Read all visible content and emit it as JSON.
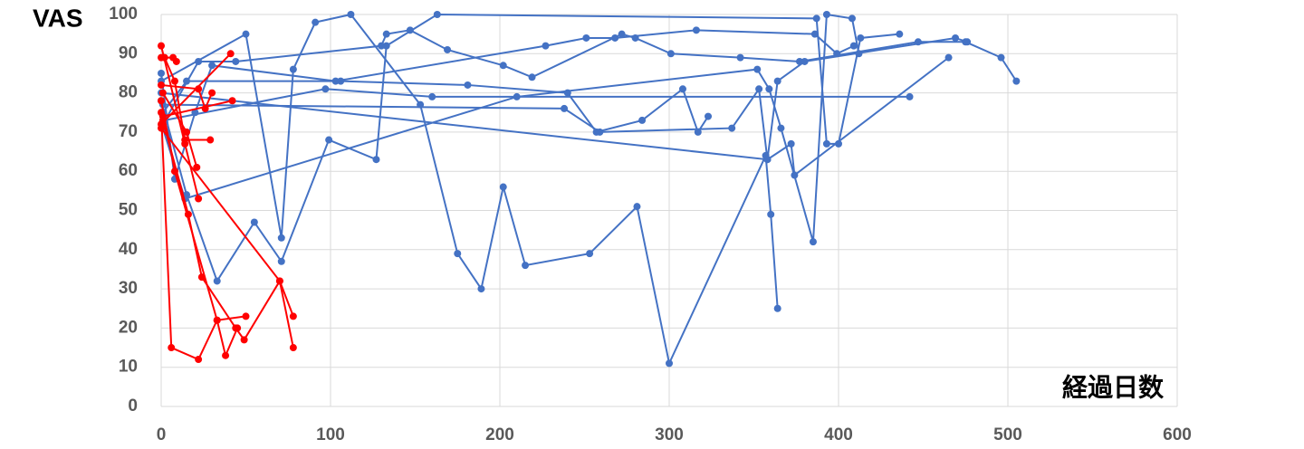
{
  "chart_data": {
    "type": "line",
    "y_label": "VAS",
    "x_label": "経過日数",
    "xlim": [
      0,
      600
    ],
    "xticks": [
      0,
      100,
      200,
      300,
      400,
      500,
      600
    ],
    "ylim": [
      0,
      100
    ],
    "yticks": [
      0,
      10,
      20,
      30,
      40,
      50,
      60,
      70,
      80,
      90,
      100
    ],
    "grid": true,
    "series": [
      {
        "color": "#4472c4",
        "x": [
          0,
          50,
          71,
          78,
          91,
          112,
          153,
          175,
          189,
          202,
          215,
          253,
          281,
          300,
          357,
          360,
          364
        ],
        "values": [
          83,
          95,
          43,
          86,
          98,
          100,
          77,
          39,
          30,
          56,
          36,
          39,
          51,
          11,
          64,
          49,
          25
        ]
      },
      {
        "color": "#4472c4",
        "x": [
          1,
          22,
          44,
          130,
          133,
          147,
          169,
          202,
          219,
          272,
          280,
          301,
          342,
          377,
          447,
          475,
          496,
          505
        ],
        "values": [
          72,
          88,
          88,
          92,
          95,
          96,
          91,
          87,
          84,
          95,
          94,
          90,
          89,
          88,
          93,
          93,
          89,
          83
        ]
      },
      {
        "color": "#4472c4",
        "x": [
          0,
          15,
          33,
          55,
          71,
          99,
          127,
          133,
          163,
          387,
          393,
          400,
          413,
          436
        ],
        "values": [
          78,
          54,
          32,
          47,
          37,
          68,
          63,
          92,
          100,
          99,
          67,
          67,
          94,
          95
        ]
      },
      {
        "color": "#4472c4",
        "x": [
          1,
          15,
          106,
          181,
          240,
          257,
          284,
          308,
          317,
          323
        ],
        "values": [
          75,
          83,
          83,
          82,
          80,
          70,
          73,
          81,
          70,
          74
        ]
      },
      {
        "color": "#4472c4",
        "x": [
          2,
          97,
          160,
          442
        ],
        "values": [
          73,
          81,
          79,
          79
        ]
      },
      {
        "color": "#4472c4",
        "x": [
          1,
          14,
          210,
          352,
          359,
          366,
          385,
          393,
          408,
          412
        ],
        "values": [
          71,
          53,
          79,
          86,
          81,
          71,
          42,
          100,
          99,
          90
        ]
      },
      {
        "color": "#4472c4",
        "x": [
          0,
          358,
          364,
          380,
          469,
          476
        ],
        "values": [
          80,
          63,
          83,
          88,
          94,
          93
        ]
      },
      {
        "color": "#4472c4",
        "x": [
          0,
          8,
          20,
          30,
          103,
          227,
          251,
          268,
          316,
          386,
          399,
          409
        ],
        "values": [
          85,
          58,
          75,
          87,
          83,
          92,
          94,
          94,
          96,
          95,
          90,
          92
        ]
      },
      {
        "color": "#4472c4",
        "x": [
          1,
          238,
          259,
          337,
          353,
          358,
          372,
          374,
          465
        ],
        "values": [
          77,
          76,
          70,
          71,
          81,
          63,
          67,
          59,
          89
        ]
      },
      {
        "color": "#ff0000",
        "x": [
          0,
          14,
          22
        ],
        "values": [
          92,
          67,
          53
        ]
      },
      {
        "color": "#ff0000",
        "x": [
          0,
          7,
          9
        ],
        "values": [
          89,
          89,
          88
        ]
      },
      {
        "color": "#ff0000",
        "x": [
          1,
          15,
          21
        ],
        "values": [
          80,
          70,
          61
        ]
      },
      {
        "color": "#ff0000",
        "x": [
          0,
          6,
          22,
          33,
          38,
          45
        ],
        "values": [
          75,
          15,
          12,
          22,
          13,
          20
        ]
      },
      {
        "color": "#ff0000",
        "x": [
          0,
          22,
          26,
          30
        ],
        "values": [
          82,
          81,
          76,
          80
        ]
      },
      {
        "color": "#ff0000",
        "x": [
          1,
          16,
          24,
          44,
          49,
          70,
          78
        ],
        "values": [
          73,
          49,
          33,
          20,
          17,
          32,
          23
        ]
      },
      {
        "color": "#ff0000",
        "x": [
          2,
          8,
          14,
          29
        ],
        "values": [
          89,
          83,
          68,
          68
        ]
      },
      {
        "color": "#ff0000",
        "x": [
          0,
          8,
          33,
          50
        ],
        "values": [
          78,
          60,
          22,
          23
        ]
      },
      {
        "color": "#ff0000",
        "x": [
          0,
          41
        ],
        "values": [
          72,
          90
        ]
      },
      {
        "color": "#ff0000",
        "x": [
          1,
          42
        ],
        "values": [
          74,
          78
        ]
      },
      {
        "color": "#ff0000",
        "x": [
          0,
          70,
          78
        ],
        "values": [
          71,
          32,
          15
        ]
      }
    ]
  }
}
